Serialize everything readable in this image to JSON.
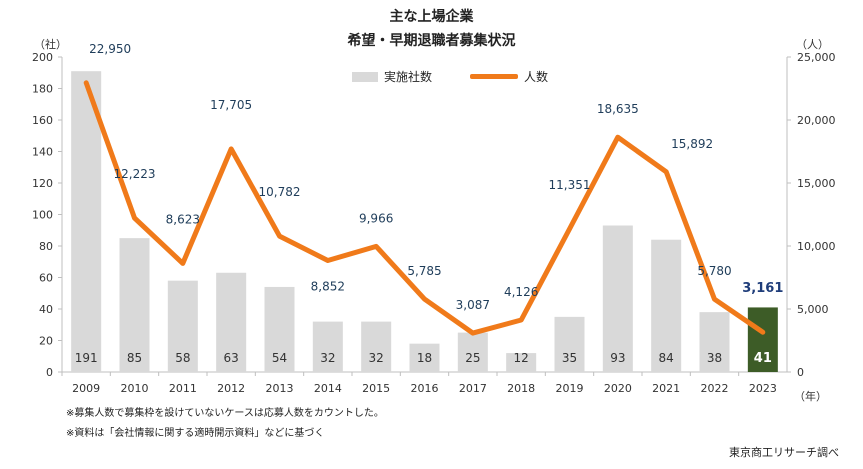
{
  "header": {
    "title_line1": "主な上場企業",
    "title_line2": "希望・早期退職者募集状況"
  },
  "units": {
    "left": "（社）",
    "right": "（人）",
    "x": "（年）"
  },
  "legend": {
    "bars_label": "実施社数",
    "line_label": "人数"
  },
  "notes": {
    "note1": "※募集人数で募集枠を設けていないケースは応募人数をカウントした。",
    "note2": "※資料は「会社情報に関する適時開示資料」などに基づく"
  },
  "source": "東京商工リサーチ調べ",
  "colors": {
    "bar": "#d9d9d9",
    "bar_highlight": "#3d5c27",
    "line": "#f07a1a",
    "line_label": "#1f3d5a",
    "highlight_text": "#1f3d7a"
  },
  "chart_data": {
    "type": "bar+line",
    "categories": [
      "2009",
      "2010",
      "2011",
      "2012",
      "2013",
      "2014",
      "2015",
      "2016",
      "2017",
      "2018",
      "2019",
      "2020",
      "2021",
      "2022",
      "2023"
    ],
    "series": [
      {
        "name": "実施社数",
        "type": "bar",
        "axis": "left",
        "values": [
          191,
          85,
          58,
          63,
          54,
          32,
          32,
          18,
          25,
          12,
          35,
          93,
          84,
          38,
          41
        ]
      },
      {
        "name": "人数",
        "type": "line",
        "axis": "right",
        "values": [
          22950,
          12223,
          8623,
          17705,
          10782,
          8852,
          9966,
          5785,
          3087,
          4126,
          11351,
          18635,
          15892,
          5780,
          3161
        ],
        "labels": [
          "22,950",
          "12,223",
          "8,623",
          "17,705",
          "10,782",
          "8,852",
          "9,966",
          "5,785",
          "3,087",
          "4,126",
          "11,351",
          "18,635",
          "15,892",
          "5,780",
          "3,161"
        ]
      }
    ],
    "highlight_index": 14,
    "y_left": {
      "min": 0,
      "max": 200,
      "ticks": [
        "0",
        "20",
        "40",
        "60",
        "80",
        "100",
        "120",
        "140",
        "160",
        "180",
        "200"
      ]
    },
    "y_right": {
      "min": 0,
      "max": 25000,
      "ticks": [
        "0",
        "5,000",
        "10,000",
        "15,000",
        "20,000",
        "25,000"
      ]
    }
  }
}
